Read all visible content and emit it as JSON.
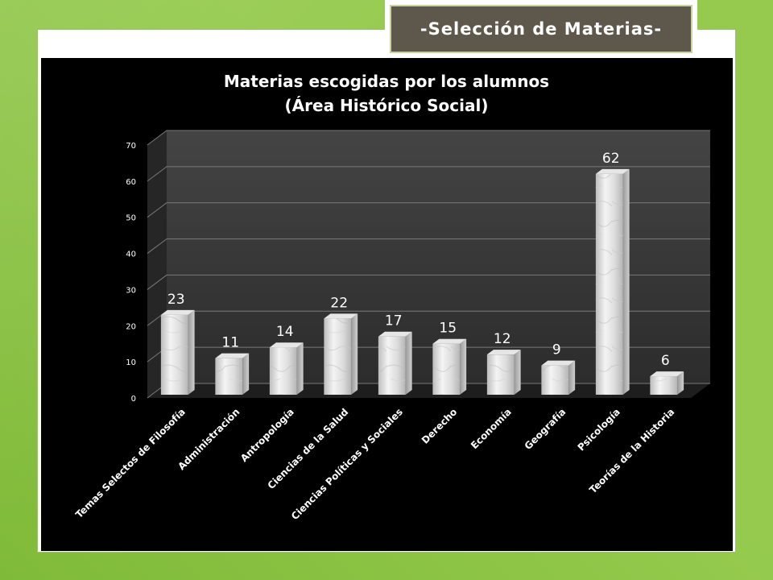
{
  "slide": {
    "heading": "-Selección de Materias-"
  },
  "colors": {
    "background_green": "#8cc63f",
    "chart_background": "#000000",
    "wall": "#3a3a3a",
    "bar_light": "#f2f2f2",
    "bar_dark": "#a9a9a9",
    "heading_box": "#5e574b"
  },
  "chart_data": {
    "type": "bar",
    "title_lines": [
      "Materias escogidas por los alumnos",
      "(Área Histórico Social)"
    ],
    "categories": [
      "Temas Selectos de Filosofía",
      "Administración",
      "Antropología",
      "Ciencias de la Salud",
      "Ciencias Políticas y Sociales",
      "Derecho",
      "Economía",
      "Geografía",
      "Psicología",
      "Teorías de la Historia"
    ],
    "values": [
      23,
      11,
      14,
      22,
      17,
      15,
      12,
      9,
      62,
      6
    ],
    "yticks": [
      0,
      10,
      20,
      30,
      40,
      50,
      60,
      70
    ],
    "ylim": [
      0,
      70
    ],
    "grid": true,
    "legend": "none",
    "style": "3d-column",
    "xlabel": "",
    "ylabel": ""
  }
}
